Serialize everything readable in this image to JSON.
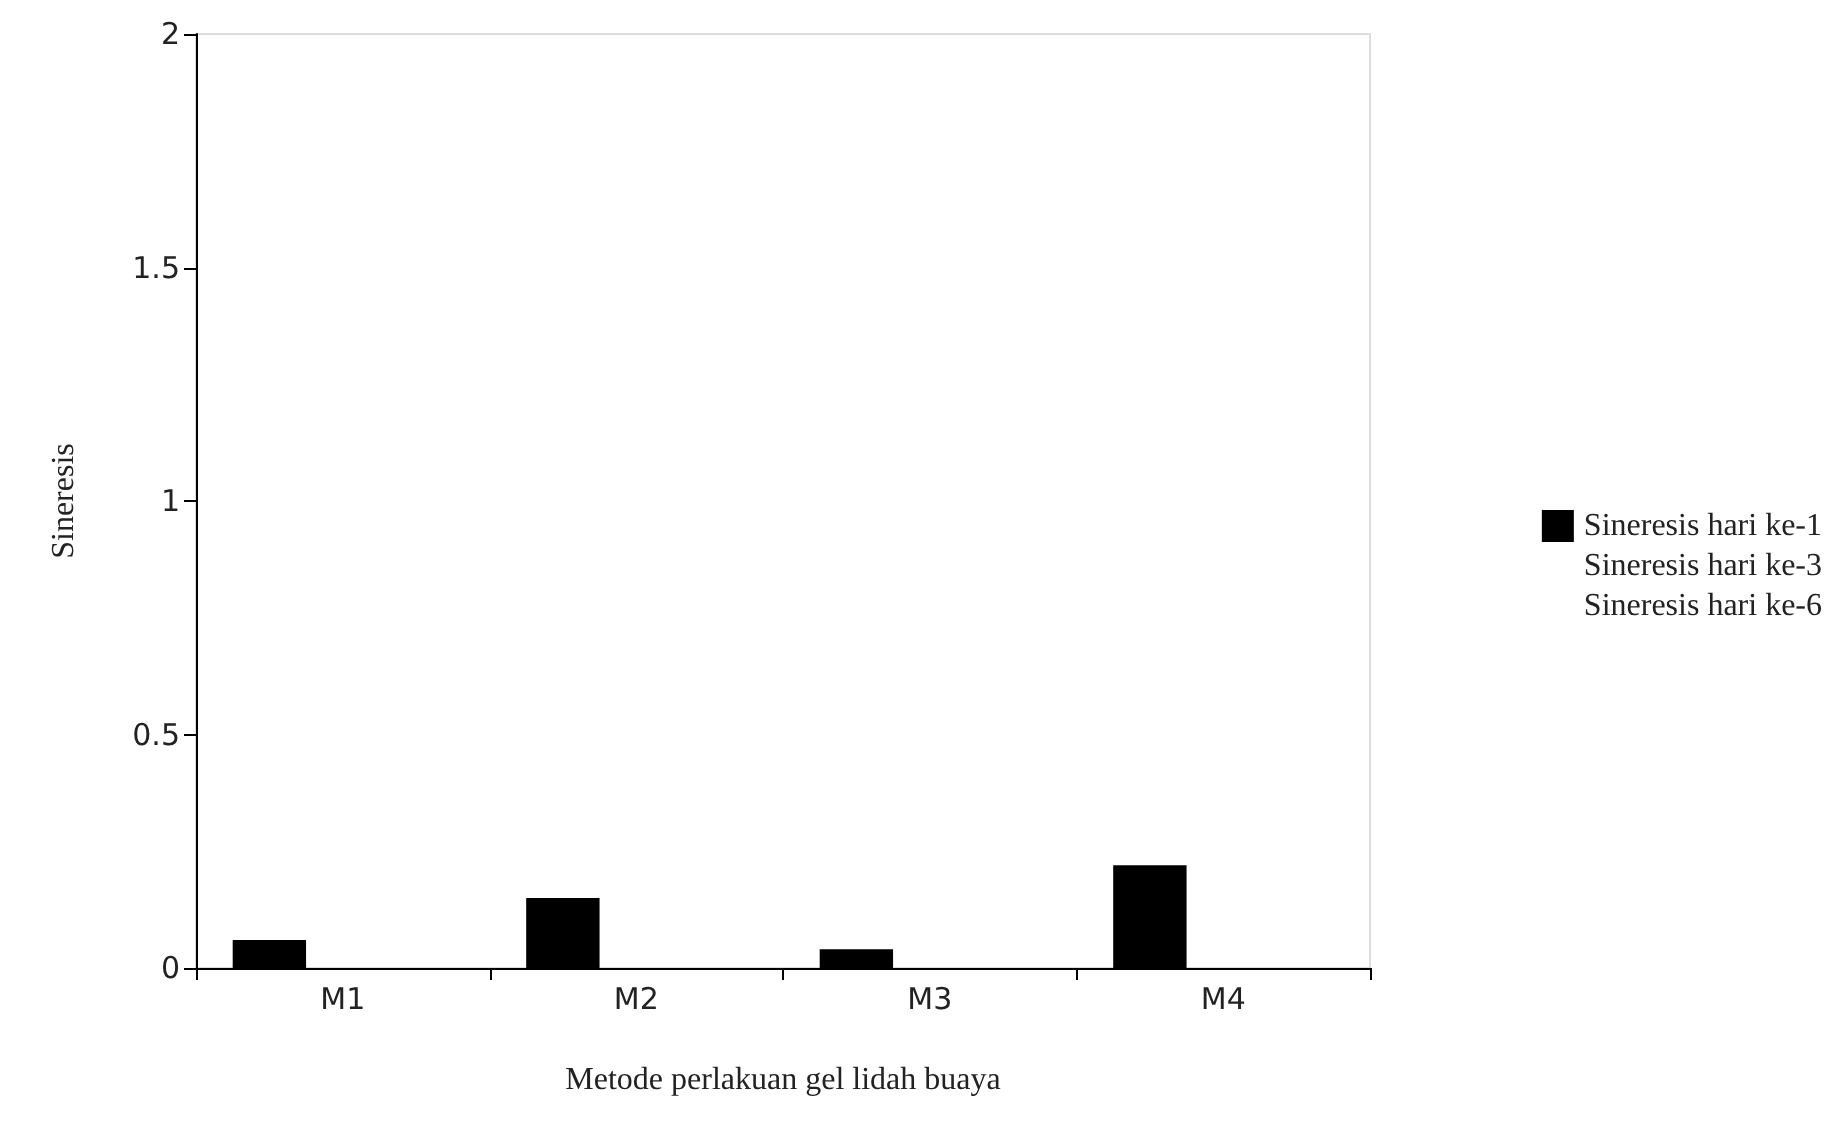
{
  "chart_data": {
    "type": "bar",
    "xlabel": "Metode perlakuan gel lidah buaya",
    "ylabel": "Sineresis",
    "categories": [
      "M1",
      "M2",
      "M3",
      "M4"
    ],
    "series": [
      {
        "name": "Sineresis hari ke-1",
        "color": "#000000",
        "values": [
          0.06,
          0.15,
          0.04,
          0.22
        ]
      },
      {
        "name": "Sineresis hari ke-3",
        "values": [
          0,
          0,
          0,
          0
        ]
      },
      {
        "name": "Sineresis hari ke-6",
        "values": [
          0,
          0,
          0,
          0
        ]
      }
    ],
    "ylim": [
      0,
      2
    ],
    "yticks": [
      0,
      0.5,
      1,
      1.5,
      2
    ],
    "grid": false,
    "legend": "right"
  }
}
